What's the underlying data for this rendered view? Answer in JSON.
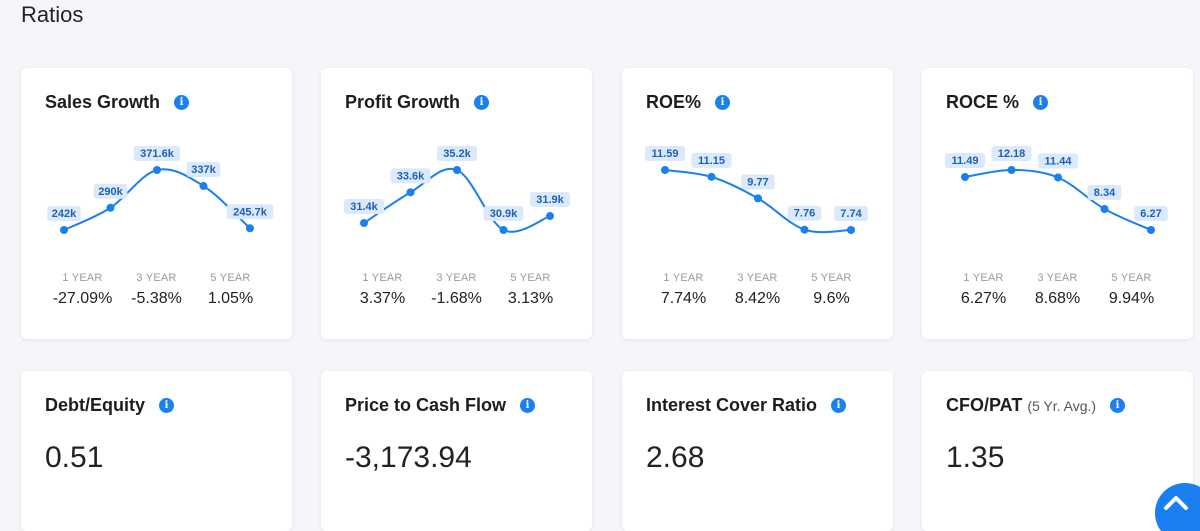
{
  "page_title": "Ratios",
  "colors": {
    "accent": "#1a7ff0",
    "label_bg": "#dbe9fb",
    "label_text": "#1b62b8"
  },
  "growth_cards": [
    {
      "title": "Sales Growth",
      "chart_data": {
        "type": "line",
        "labels": [
          "242k",
          "290k",
          "371.6k",
          "337k",
          "245.7k"
        ],
        "values": [
          242,
          290,
          371.6,
          337,
          245.7
        ]
      },
      "periods": [
        {
          "label": "1 YEAR",
          "value": "-27.09%"
        },
        {
          "label": "3 YEAR",
          "value": "-5.38%"
        },
        {
          "label": "5 YEAR",
          "value": "1.05%"
        }
      ]
    },
    {
      "title": "Profit Growth",
      "chart_data": {
        "type": "line",
        "labels": [
          "31.4k",
          "33.6k",
          "35.2k",
          "30.9k",
          "31.9k"
        ],
        "values": [
          31.4,
          33.6,
          35.2,
          30.9,
          31.9
        ]
      },
      "periods": [
        {
          "label": "1 YEAR",
          "value": "3.37%"
        },
        {
          "label": "3 YEAR",
          "value": "-1.68%"
        },
        {
          "label": "5 YEAR",
          "value": "3.13%"
        }
      ]
    },
    {
      "title": "ROE%",
      "chart_data": {
        "type": "line",
        "labels": [
          "11.59",
          "11.15",
          "9.77",
          "7.76",
          "7.74"
        ],
        "values": [
          11.59,
          11.15,
          9.77,
          7.76,
          7.74
        ]
      },
      "periods": [
        {
          "label": "1 YEAR",
          "value": "7.74%"
        },
        {
          "label": "3 YEAR",
          "value": "8.42%"
        },
        {
          "label": "5 YEAR",
          "value": "9.6%"
        }
      ]
    },
    {
      "title": "ROCE %",
      "chart_data": {
        "type": "line",
        "labels": [
          "11.49",
          "12.18",
          "11.44",
          "8.34",
          "6.27"
        ],
        "values": [
          11.49,
          12.18,
          11.44,
          8.34,
          6.27
        ]
      },
      "periods": [
        {
          "label": "1 YEAR",
          "value": "6.27%"
        },
        {
          "label": "3 YEAR",
          "value": "8.68%"
        },
        {
          "label": "5 YEAR",
          "value": "9.94%"
        }
      ]
    }
  ],
  "value_cards": [
    {
      "title": "Debt/Equity",
      "subtitle": "",
      "value": "0.51"
    },
    {
      "title": "Price to Cash Flow",
      "subtitle": "",
      "value": "-3,173.94"
    },
    {
      "title": "Interest Cover Ratio",
      "subtitle": "",
      "value": "2.68"
    },
    {
      "title": "CFO/PAT",
      "subtitle": "(5 Yr. Avg.)",
      "value": "1.35"
    }
  ],
  "icons": {
    "info": "info-icon",
    "scroll_top": "chevron-up-icon"
  }
}
